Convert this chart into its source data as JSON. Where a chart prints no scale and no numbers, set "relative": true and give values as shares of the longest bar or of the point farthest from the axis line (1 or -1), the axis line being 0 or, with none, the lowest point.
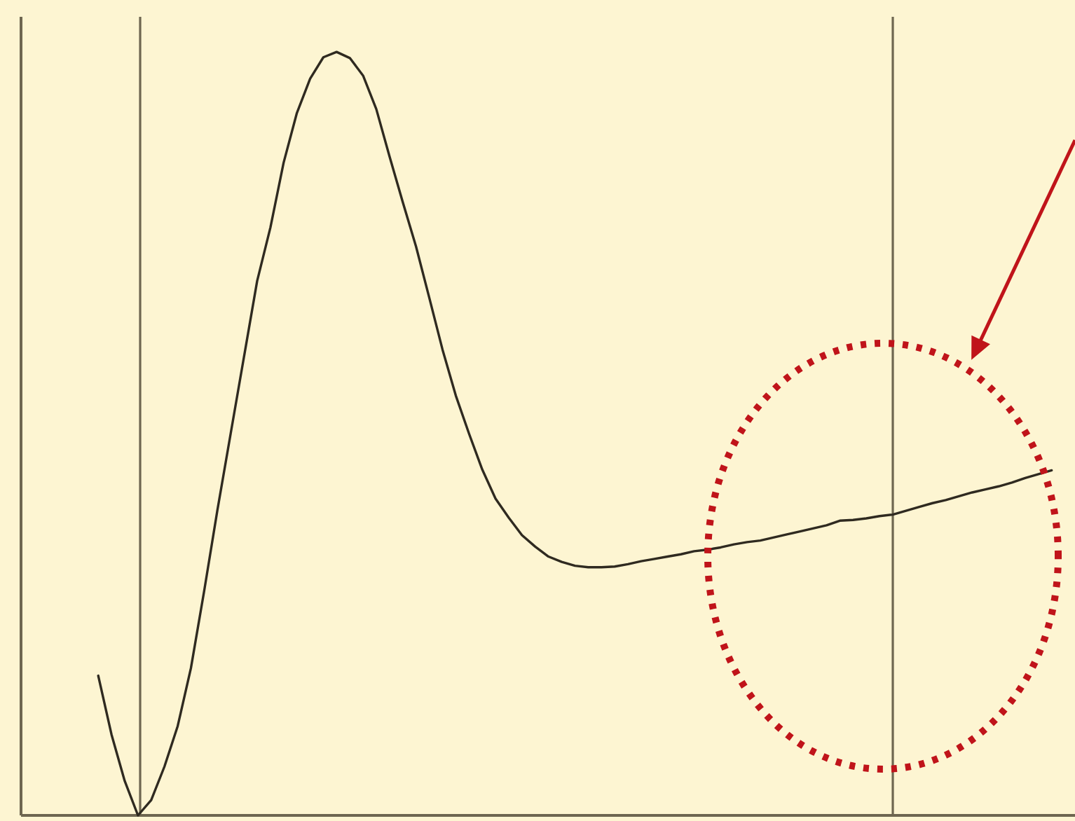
{
  "chart_data": {
    "type": "line",
    "relative": true,
    "line_style": "solid",
    "categories": [
      null,
      null,
      null,
      null,
      null,
      null,
      null,
      null,
      null,
      null,
      null,
      null,
      null,
      null,
      null,
      null,
      null,
      null,
      null,
      null,
      null,
      null,
      null,
      null,
      null,
      null,
      null,
      null,
      null,
      null,
      null,
      null,
      null,
      null,
      null,
      null,
      null,
      null,
      null,
      null,
      null,
      null,
      null,
      null,
      null,
      null,
      null,
      null,
      null,
      null,
      null,
      null,
      null,
      null,
      null,
      null,
      null,
      null,
      null,
      null,
      null,
      null,
      null,
      null,
      null,
      null,
      null,
      null,
      null,
      null,
      null,
      null,
      null
    ],
    "series": [
      {
        "color": "#2f2a20",
        "values": [
          0.183,
          0.106,
          0.045,
          0,
          0.02,
          0.064,
          0.117,
          0.193,
          0.294,
          0.4,
          0.5,
          0.6,
          0.7,
          0.77,
          0.855,
          0.92,
          0.965,
          0.993,
          1,
          0.992,
          0.969,
          0.925,
          0.863,
          0.803,
          0.745,
          0.678,
          0.61,
          0.55,
          0.5,
          0.453,
          0.415,
          0.39,
          0.367,
          0.352,
          0.339,
          0.332,
          0.327,
          0.325,
          0.325,
          0.326,
          0.329,
          0.333,
          0.336,
          0.339,
          0.342,
          0.346,
          0.348,
          0.351,
          0.355,
          0.358,
          0.36,
          0.364,
          0.368,
          0.372,
          0.376,
          0.38,
          0.386,
          0.387,
          0.389,
          0.392,
          0.394,
          0.399,
          0.404,
          0.409,
          0.413,
          0.418,
          0.423,
          0.427,
          0.431,
          0.436,
          0.442,
          0.447,
          0.452
        ]
      }
    ]
  }
}
